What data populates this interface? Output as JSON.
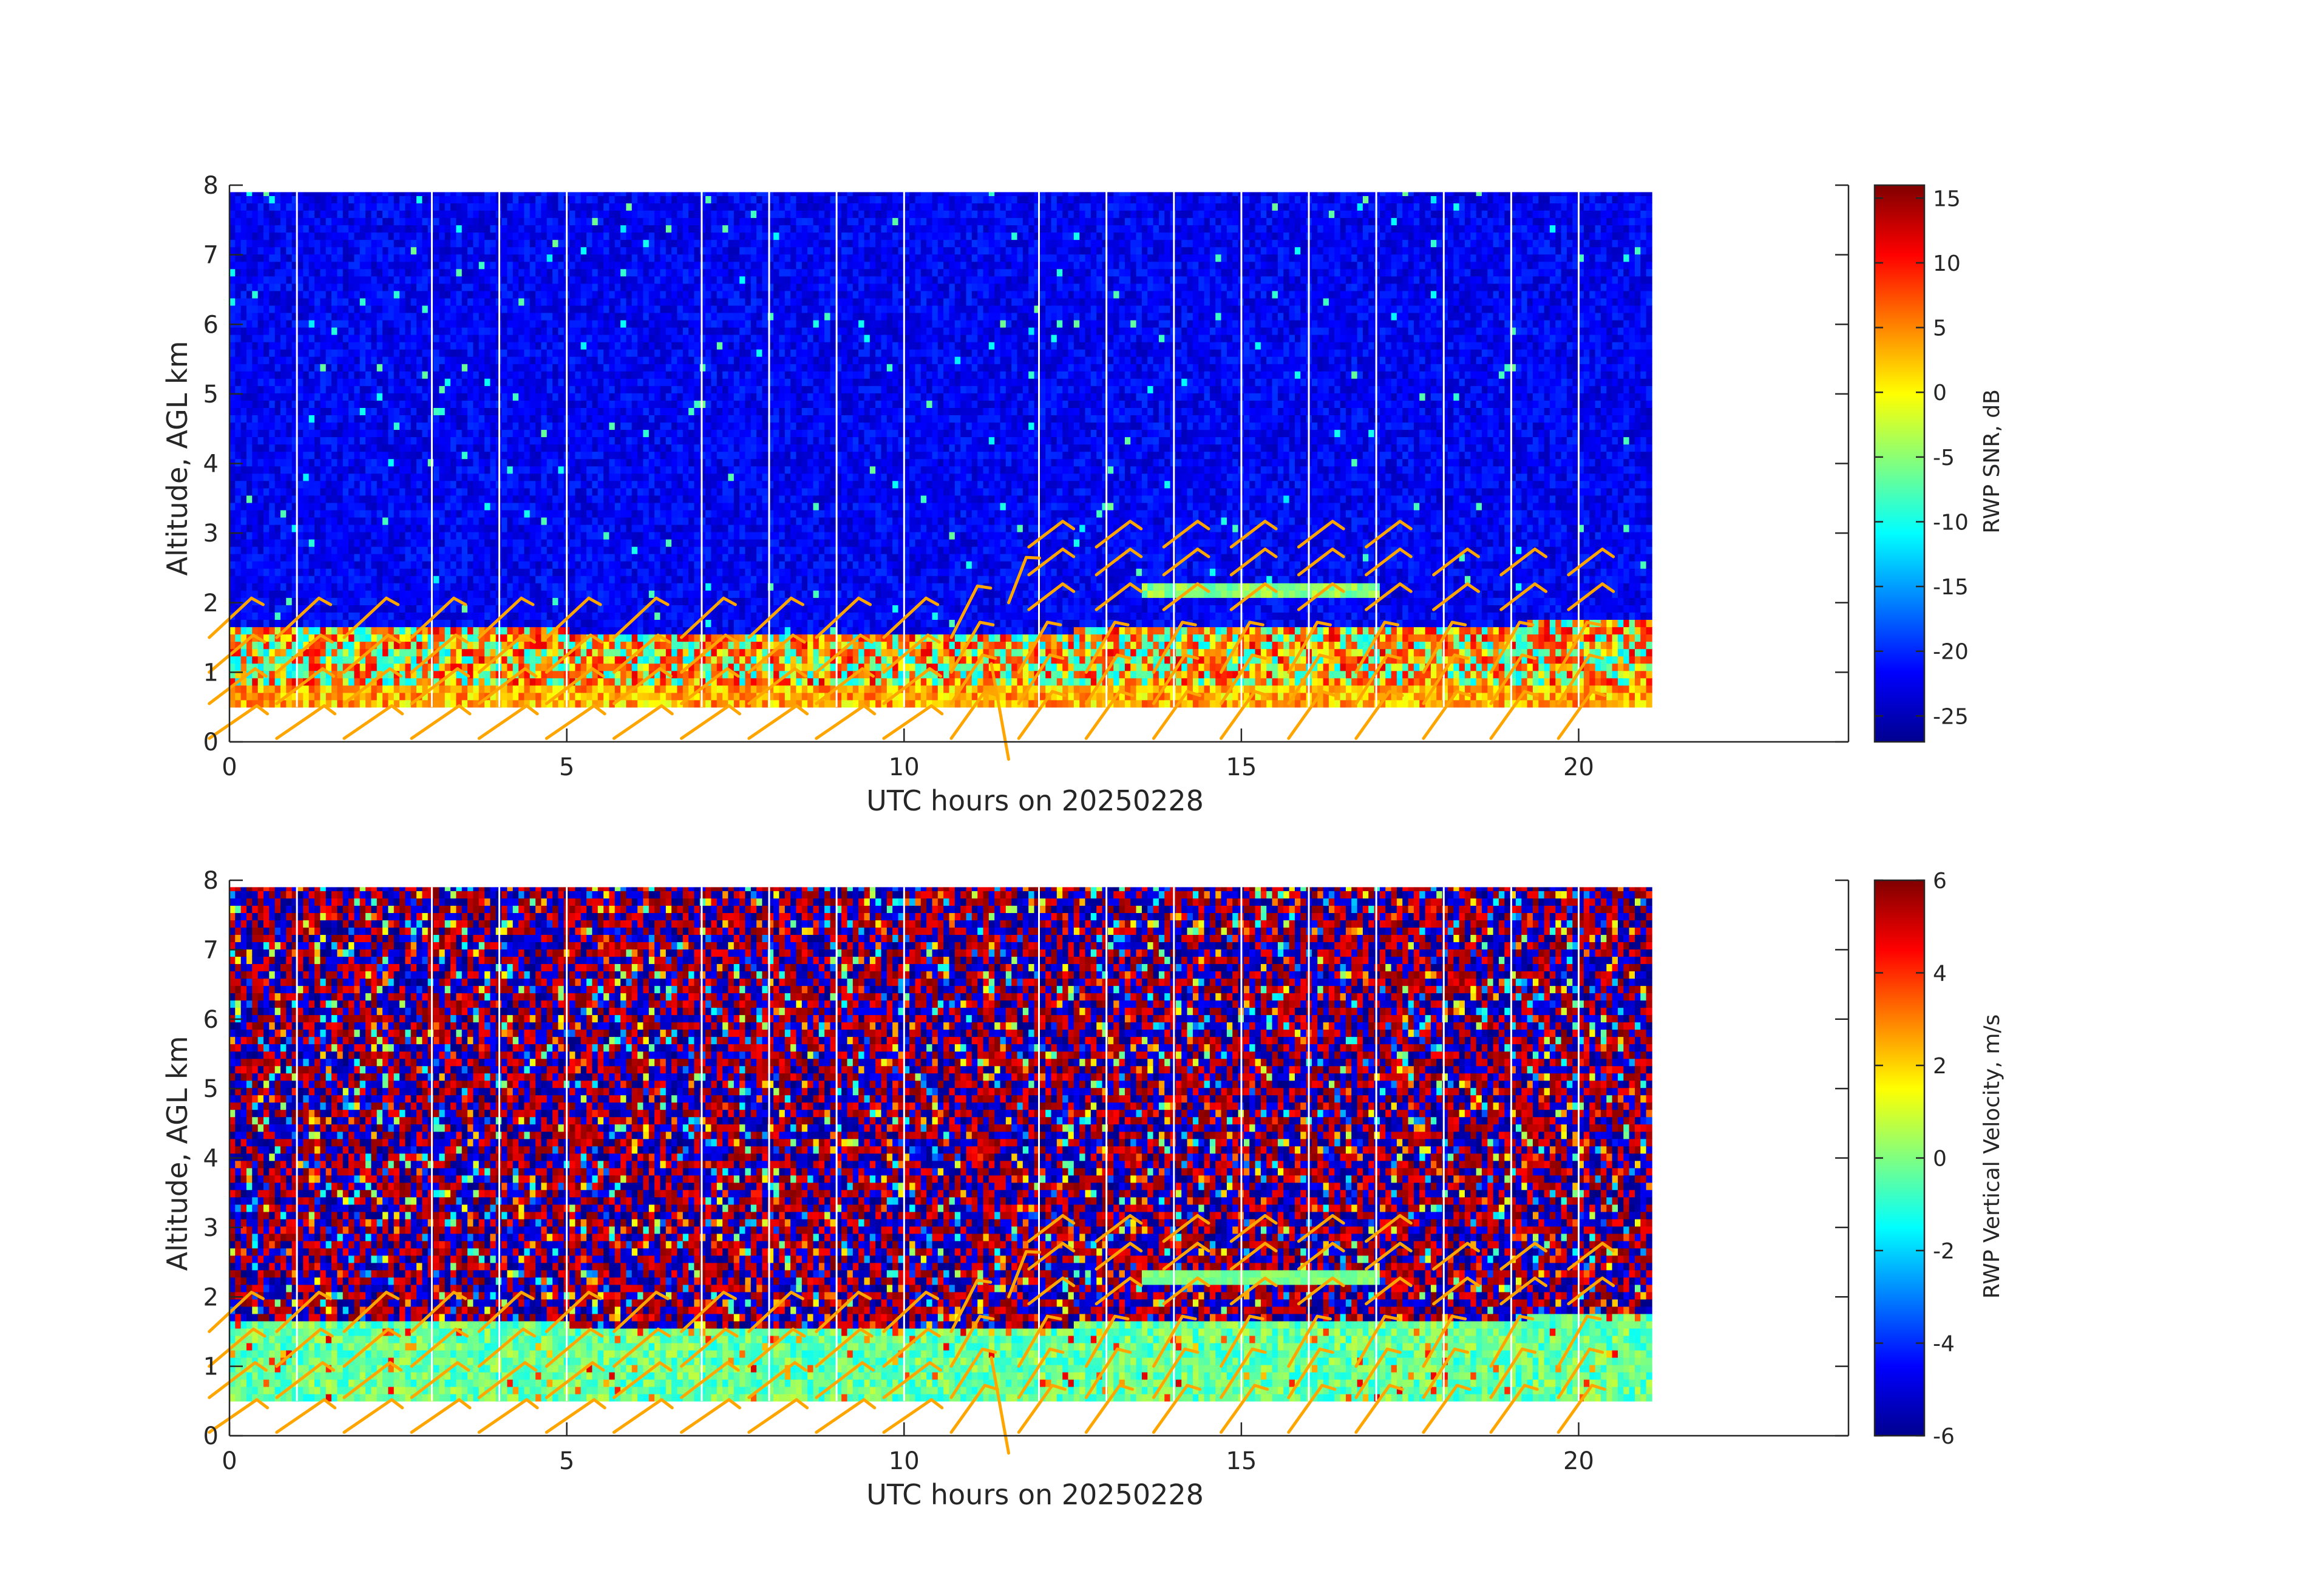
{
  "chart_data": [
    {
      "type": "heatmap",
      "title": "",
      "xlabel": "UTC hours on 20250228",
      "ylabel": "Altitude, AGL km",
      "xlim": [
        0,
        24
      ],
      "ylim": [
        0,
        8
      ],
      "xticks": [
        "0",
        "5",
        "10",
        "15",
        "20"
      ],
      "yticks": [
        "0",
        "1",
        "2",
        "3",
        "4",
        "5",
        "6",
        "7",
        "8"
      ],
      "data_extent_hours": [
        0,
        21
      ],
      "data_altitude_km": [
        0.5,
        7.9
      ],
      "boundary_layer_top_km": [
        {
          "hour": 0,
          "km": 1.6
        },
        {
          "hour": 5,
          "km": 1.55
        },
        {
          "hour": 10,
          "km": 1.45
        },
        {
          "hour": 11.5,
          "km": 1.45
        },
        {
          "hour": 13,
          "km": 1.6
        },
        {
          "hour": 17,
          "km": 1.6
        },
        {
          "hour": 19,
          "km": 1.65
        },
        {
          "hour": 21,
          "km": 1.7
        }
      ],
      "elevated_layer": {
        "hour_start": 13.5,
        "hour_end": 17,
        "km": 2.1
      },
      "colorbar": {
        "label": "RWP SNR, dB",
        "limits": [
          -27,
          16
        ],
        "ticks": [
          "15",
          "10",
          "5",
          "0",
          "-5",
          "-10",
          "-15",
          "-20",
          "-25"
        ]
      },
      "wind_barb_color": "#ffa500"
    },
    {
      "type": "heatmap",
      "title": "",
      "xlabel": "UTC hours on 20250228",
      "ylabel": "Altitude, AGL km",
      "xlim": [
        0,
        24
      ],
      "ylim": [
        0,
        8
      ],
      "xticks": [
        "0",
        "5",
        "10",
        "15",
        "20"
      ],
      "yticks": [
        "0",
        "1",
        "2",
        "3",
        "4",
        "5",
        "6",
        "7",
        "8"
      ],
      "data_extent_hours": [
        0,
        21
      ],
      "data_altitude_km": [
        0.5,
        7.9
      ],
      "boundary_layer_top_km": [
        {
          "hour": 0,
          "km": 1.6
        },
        {
          "hour": 5,
          "km": 1.55
        },
        {
          "hour": 10,
          "km": 1.45
        },
        {
          "hour": 11.5,
          "km": 1.45
        },
        {
          "hour": 13,
          "km": 1.6
        },
        {
          "hour": 17,
          "km": 1.6
        },
        {
          "hour": 19,
          "km": 1.65
        },
        {
          "hour": 21,
          "km": 1.7
        }
      ],
      "elevated_layer": {
        "hour_start": 13.5,
        "hour_end": 17,
        "km": 2.2
      },
      "colorbar": {
        "label": "RWP Vertical Velocity, m/s",
        "limits": [
          -6,
          6
        ],
        "ticks": [
          "6",
          "4",
          "2",
          "0",
          "-2",
          "-4",
          "-6"
        ]
      },
      "wind_barb_color": "#ffa500"
    }
  ]
}
